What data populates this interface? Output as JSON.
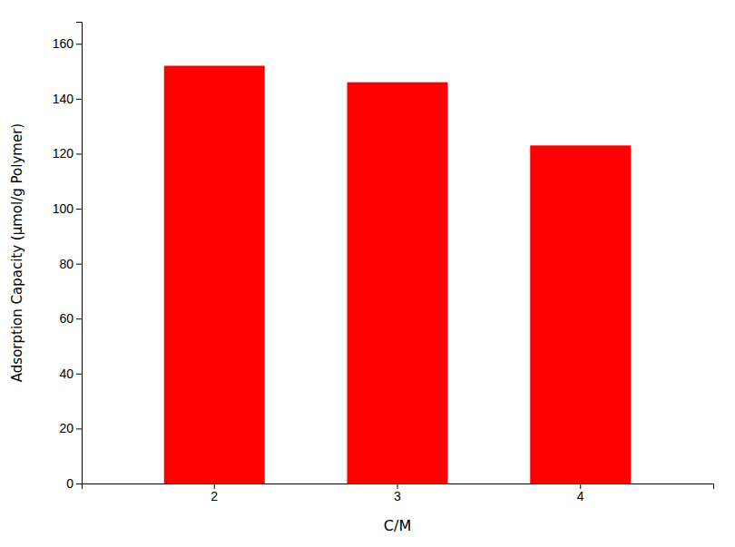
{
  "chart_data": {
    "type": "bar",
    "categories": [
      "2",
      "3",
      "4"
    ],
    "values": [
      152,
      146,
      123
    ],
    "color": "#ff0000",
    "xlabel": "C/M",
    "ylabel": "Adsorption Capacity (μmol/g Polymer)",
    "ylim": [
      0,
      168
    ],
    "yticks": [
      0,
      20,
      40,
      60,
      80,
      100,
      120,
      140,
      160
    ],
    "grid": false
  }
}
